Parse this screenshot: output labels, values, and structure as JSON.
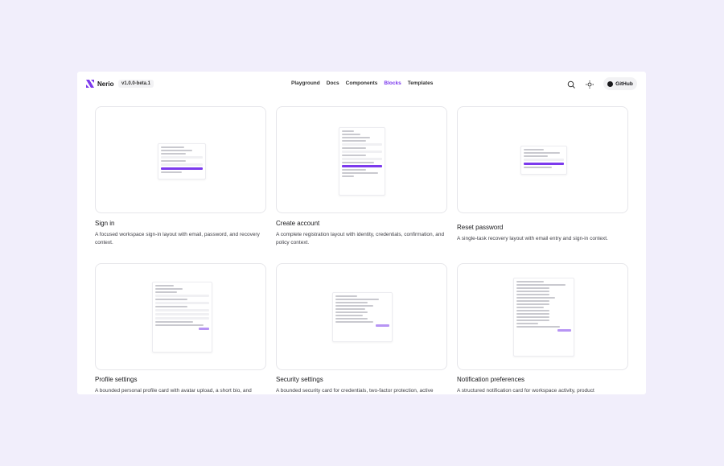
{
  "header": {
    "brand": "Nerio",
    "version": "v1.0.0-beta.1",
    "nav": [
      "Playground",
      "Docs",
      "Components",
      "Blocks",
      "Templates"
    ],
    "active_nav": "Blocks",
    "github": "GitHub"
  },
  "cards": [
    {
      "title": "Sign in",
      "description": "A focused workspace sign-in layout with email, password, and recovery context."
    },
    {
      "title": "Create account",
      "description": "A complete registration layout with identity, credentials, confirmation, and policy context."
    },
    {
      "title": "Reset password",
      "description": "A single-task recovery layout with email entry and sign-in context."
    },
    {
      "title": "Profile settings",
      "description": "A bounded personal profile card with avatar upload, a short bio, and"
    },
    {
      "title": "Security settings",
      "description": "A bounded security card for credentials, two-factor protection, active"
    },
    {
      "title": "Notification preferences",
      "description": "A structured notification card for workspace activity, product"
    }
  ]
}
